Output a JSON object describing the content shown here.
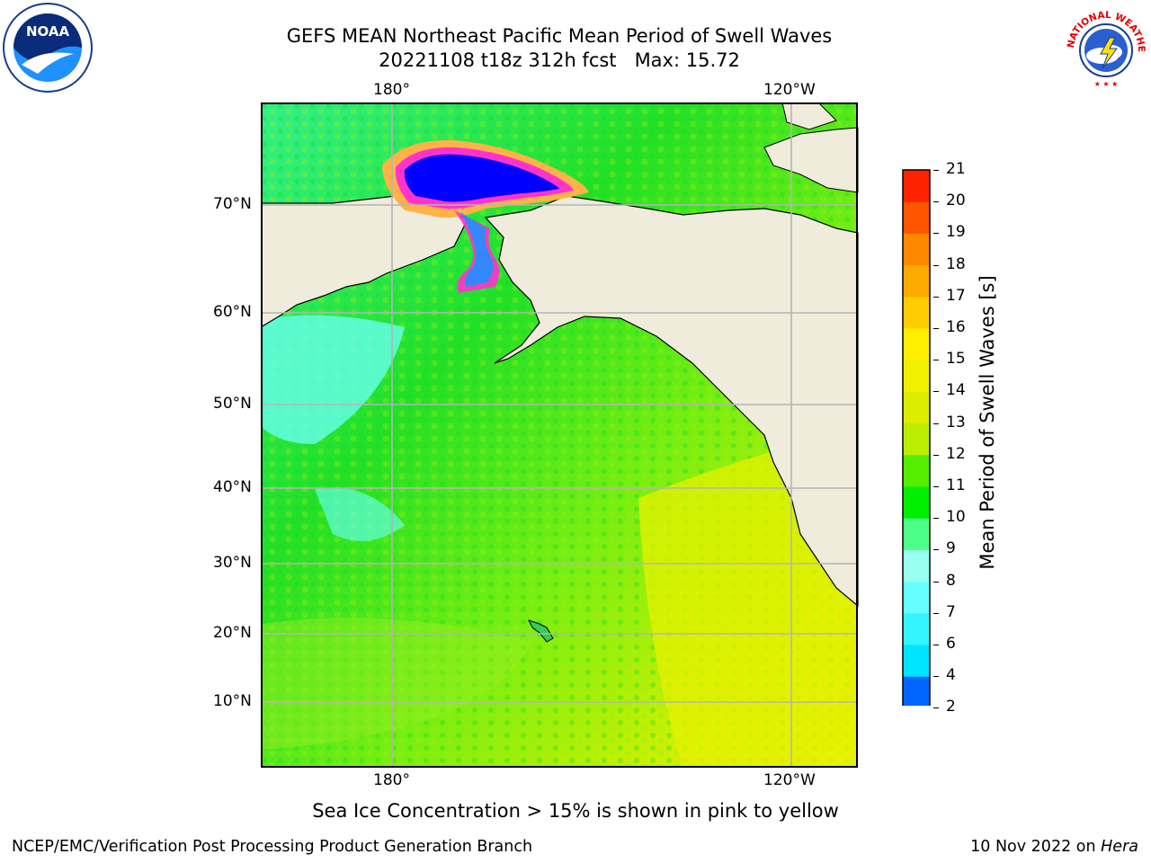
{
  "header": {
    "title_line1": "GEFS MEAN Northeast Pacific Mean Period of Swell Waves",
    "title_line2": "20221108 t18z 312h fcst   Max: 15.72"
  },
  "logos": {
    "left": {
      "name": "NOARA-style agency seal",
      "text": "NOAA",
      "ring_text": "NATIONAL OCEANIC AND ATMOSPHERIC ADMINISTRATION · U.S. DEPARTMENT OF COMMERCE"
    },
    "right": {
      "ring_text": "NATIONAL WEATHER SERVICE"
    }
  },
  "map": {
    "lon_ticks_top": [
      "180°",
      "120°W"
    ],
    "lon_ticks_bottom": [
      "180°",
      "120°W"
    ],
    "lat_ticks": [
      "70°N",
      "60°N",
      "50°N",
      "40°N",
      "30°N",
      "20°N",
      "10°N"
    ],
    "colors": {
      "land": "#efecdc",
      "grid": "#b4b4b4",
      "ice_inner": "#0000ff",
      "ice_edge": "#ff33cc",
      "ice_outer": "#ffb347"
    }
  },
  "colorbar": {
    "label": "Mean Period of Swell Waves [s]",
    "levels": [
      "2",
      "4",
      "6",
      "7",
      "8",
      "9",
      "10",
      "11",
      "12",
      "13",
      "14",
      "15",
      "16",
      "17",
      "18",
      "19",
      "20",
      "21"
    ],
    "colors": [
      "#0066ff",
      "#00e5ff",
      "#33f5ff",
      "#66ffff",
      "#99ffee",
      "#4dff88",
      "#00ee00",
      "#55ee00",
      "#bbee00",
      "#dded00",
      "#f0f000",
      "#ffee00",
      "#ffcc00",
      "#ffaa00",
      "#ff8800",
      "#ff5500",
      "#ff2200"
    ],
    "extend_min_color": "#0000ee"
  },
  "caption": "Sea Ice Concentration > 15% is shown in pink to yellow",
  "footer": {
    "left": "NCEP/EMC/Verification Post Processing Product Generation Branch",
    "right_prefix": "10 Nov 2022 on ",
    "right_host": "Hera"
  }
}
